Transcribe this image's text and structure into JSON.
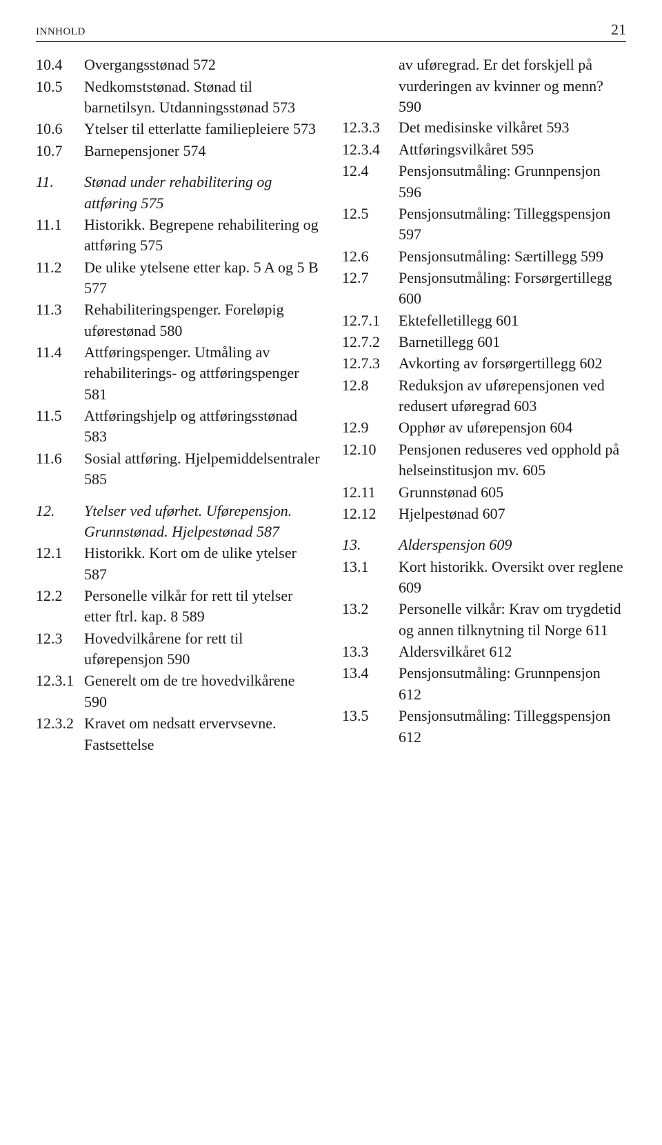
{
  "header": {
    "label": "INNHOLD",
    "page": "21"
  },
  "left": [
    {
      "n": "10.4",
      "t": "Overgangsstønad   572"
    },
    {
      "n": "10.5",
      "t": "Nedkomststønad. Stønad til barnetilsyn. Utdanningsstønad   573"
    },
    {
      "n": "10.6",
      "t": "Ytelser til etterlatte familiepleiere   573"
    },
    {
      "n": "10.7",
      "t": "Barnepensjoner   574"
    },
    {
      "spacer": true
    },
    {
      "n": "11.",
      "t": "Stønad under rehabilitering og attføring   575",
      "italic": true
    },
    {
      "n": "11.1",
      "t": "Historikk. Begrepene rehabilitering og attføring   575"
    },
    {
      "n": "11.2",
      "t": "De ulike ytelsene etter kap. 5 A og 5 B   577"
    },
    {
      "n": "11.3",
      "t": "Rehabiliteringspenger. Foreløpig uførestønad   580"
    },
    {
      "n": "11.4",
      "t": "Attføringspenger. Utmåling av rehabiliterings- og attføringspenger   581"
    },
    {
      "n": "11.5",
      "t": "Attføringshjelp og attføringsstønad   583"
    },
    {
      "n": "11.6",
      "t": "Sosial attføring. Hjelpemiddelsentraler   585"
    },
    {
      "spacer": true
    },
    {
      "n": "12.",
      "t": "Ytelser ved uførhet. Uførepensjon. Grunnstønad. Hjelpestønad   587",
      "italic": true
    },
    {
      "n": "12.1",
      "t": "Historikk. Kort om de ulike ytelser   587"
    },
    {
      "n": "12.2",
      "t": "Personelle vilkår for rett til ytelser etter ftrl. kap. 8   589"
    },
    {
      "n": "12.3",
      "t": "Hovedvilkårene for rett til uførepensjon   590"
    },
    {
      "n": "12.3.1",
      "t": "Generelt om de tre hovedvilkårene   590"
    },
    {
      "n": "12.3.2",
      "t": "Kravet om nedsatt ervervsevne. Fastsettelse"
    }
  ],
  "right": [
    {
      "indent": true,
      "t": "av uføregrad. Er det forskjell på vurderingen av kvinner og menn?   590"
    },
    {
      "n": "12.3.3",
      "t": "Det medisinske vilkåret   593"
    },
    {
      "n": "12.3.4",
      "t": "Attføringsvilkåret   595"
    },
    {
      "n": "12.4",
      "t": "Pensjonsutmåling: Grunnpensjon   596"
    },
    {
      "n": "12.5",
      "t": "Pensjonsutmåling: Tilleggspensjon   597"
    },
    {
      "n": "12.6",
      "t": "Pensjonsutmåling: Særtillegg   599"
    },
    {
      "n": "12.7",
      "t": "Pensjonsutmåling: Forsørgertillegg   600"
    },
    {
      "n": "12.7.1",
      "t": "Ektefelletillegg   601"
    },
    {
      "n": "12.7.2",
      "t": "Barnetillegg   601"
    },
    {
      "n": "12.7.3",
      "t": "Avkorting av forsørgertillegg   602"
    },
    {
      "n": "12.8",
      "t": "Reduksjon av uførepensjonen ved redusert uføregrad   603"
    },
    {
      "n": "12.9",
      "t": "Opphør av uførepensjon   604"
    },
    {
      "n": "12.10",
      "t": "Pensjonen reduseres ved opphold på helseinstitusjon mv.   605"
    },
    {
      "n": "12.11",
      "t": "Grunnstønad   605"
    },
    {
      "n": "12.12",
      "t": "Hjelpestønad   607"
    },
    {
      "spacer": true
    },
    {
      "n": "13.",
      "t": "Alderspensjon   609",
      "italic": true
    },
    {
      "n": "13.1",
      "t": "Kort historikk. Oversikt over reglene   609"
    },
    {
      "n": "13.2",
      "t": "Personelle vilkår: Krav om trygdetid og annen tilknytning til Norge   611"
    },
    {
      "n": "13.3",
      "t": "Aldersvilkåret   612"
    },
    {
      "n": "13.4",
      "t": "Pensjonsutmåling: Grunnpensjon   612"
    },
    {
      "n": "13.5",
      "t": "Pensjonsutmåling: Tilleggspensjon   612"
    }
  ]
}
